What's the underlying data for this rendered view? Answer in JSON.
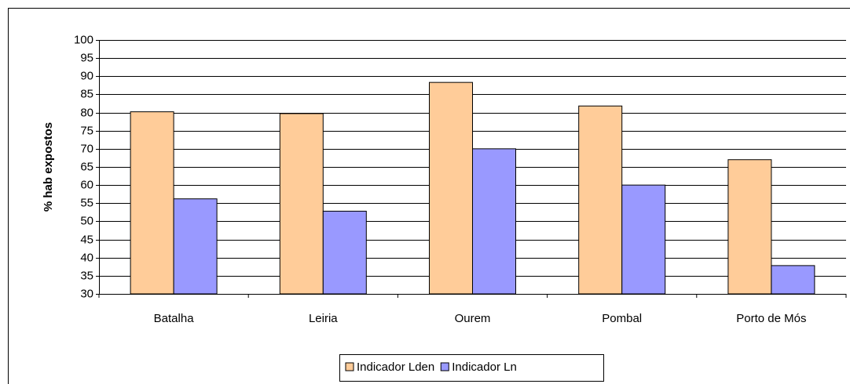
{
  "chart_data": {
    "type": "bar",
    "y_label": "% hab expostos",
    "categories": [
      "Batalha",
      "Leiria",
      "Ourem",
      "Pombal",
      "Porto de Mós"
    ],
    "series": [
      {
        "name": "Indicador Lden",
        "color": "#ffcc99",
        "values": [
          80.2,
          79.7,
          88.3,
          81.8,
          67.0
        ]
      },
      {
        "name": "Indicador Ln",
        "color": "#9999ff",
        "values": [
          56.2,
          52.8,
          70.0,
          60.0,
          37.8
        ]
      }
    ],
    "ylim": [
      30,
      100
    ],
    "yticks": [
      30,
      35,
      40,
      45,
      50,
      55,
      60,
      65,
      70,
      75,
      80,
      85,
      90,
      95,
      100
    ],
    "grid": true,
    "legend": "bottom"
  }
}
